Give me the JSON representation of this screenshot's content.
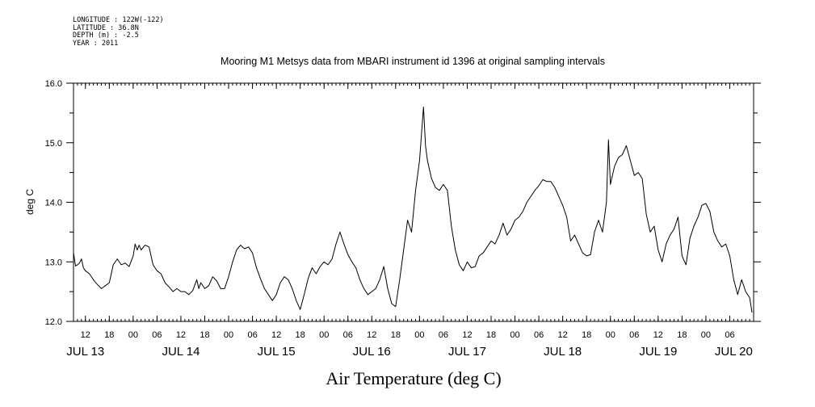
{
  "metadata": {
    "longitude": "LONGITUDE : 122W(-122)",
    "latitude": "LATITUDE : 36.8N",
    "depth": "DEPTH (m) : -2.5",
    "year": "YEAR : 2011"
  },
  "chart_data": {
    "type": "line",
    "title": "Mooring M1 Metsys data from MBARI instrument id 1396 at original sampling intervals",
    "xlabel": "Air Temperature (deg C)",
    "ylabel": "deg C",
    "ylim": [
      12.0,
      16.0
    ],
    "xlim_hours": [
      0,
      171
    ],
    "yticks": [
      "12.0",
      "13.0",
      "14.0",
      "15.0",
      "16.0"
    ],
    "hour_ticks": [
      {
        "h": 3,
        "label": "12"
      },
      {
        "h": 9,
        "label": "18"
      },
      {
        "h": 15,
        "label": "00"
      },
      {
        "h": 21,
        "label": "06"
      },
      {
        "h": 27,
        "label": "12"
      },
      {
        "h": 33,
        "label": "18"
      },
      {
        "h": 39,
        "label": "00"
      },
      {
        "h": 45,
        "label": "06"
      },
      {
        "h": 51,
        "label": "12"
      },
      {
        "h": 57,
        "label": "18"
      },
      {
        "h": 63,
        "label": "00"
      },
      {
        "h": 69,
        "label": "06"
      },
      {
        "h": 75,
        "label": "12"
      },
      {
        "h": 81,
        "label": "18"
      },
      {
        "h": 87,
        "label": "00"
      },
      {
        "h": 93,
        "label": "06"
      },
      {
        "h": 99,
        "label": "12"
      },
      {
        "h": 105,
        "label": "18"
      },
      {
        "h": 111,
        "label": "00"
      },
      {
        "h": 117,
        "label": "06"
      },
      {
        "h": 123,
        "label": "12"
      },
      {
        "h": 129,
        "label": "18"
      },
      {
        "h": 135,
        "label": "00"
      },
      {
        "h": 141,
        "label": "06"
      },
      {
        "h": 147,
        "label": "12"
      },
      {
        "h": 153,
        "label": "18"
      },
      {
        "h": 159,
        "label": "00"
      },
      {
        "h": 165,
        "label": "06"
      }
    ],
    "day_labels": [
      {
        "h": 3,
        "label": "JUL 13"
      },
      {
        "h": 27,
        "label": "JUL 14"
      },
      {
        "h": 51,
        "label": "JUL 15"
      },
      {
        "h": 75,
        "label": "JUL 16"
      },
      {
        "h": 99,
        "label": "JUL 17"
      },
      {
        "h": 123,
        "label": "JUL 18"
      },
      {
        "h": 147,
        "label": "JUL 19"
      },
      {
        "h": 166,
        "label": "JUL 20"
      }
    ],
    "series": [
      {
        "values": [
          [
            0.0,
            13.15
          ],
          [
            0.5,
            12.93
          ],
          [
            1.0,
            12.95
          ],
          [
            1.5,
            12.98
          ],
          [
            2.0,
            13.05
          ],
          [
            2.5,
            12.9
          ],
          [
            3.0,
            12.85
          ],
          [
            4.0,
            12.8
          ],
          [
            5.0,
            12.7
          ],
          [
            6.0,
            12.62
          ],
          [
            7.0,
            12.55
          ],
          [
            8.0,
            12.6
          ],
          [
            9.0,
            12.65
          ],
          [
            9.5,
            12.8
          ],
          [
            10.0,
            12.95
          ],
          [
            11.0,
            13.05
          ],
          [
            12.0,
            12.95
          ],
          [
            13.0,
            12.98
          ],
          [
            14.0,
            12.92
          ],
          [
            15.0,
            13.1
          ],
          [
            15.5,
            13.3
          ],
          [
            16.0,
            13.2
          ],
          [
            16.5,
            13.28
          ],
          [
            17.0,
            13.2
          ],
          [
            18.0,
            13.28
          ],
          [
            19.0,
            13.25
          ],
          [
            19.5,
            13.1
          ],
          [
            20.0,
            12.95
          ],
          [
            21.0,
            12.85
          ],
          [
            22.0,
            12.8
          ],
          [
            23.0,
            12.65
          ],
          [
            24.0,
            12.58
          ],
          [
            25.0,
            12.5
          ],
          [
            26.0,
            12.55
          ],
          [
            27.0,
            12.5
          ],
          [
            28.0,
            12.5
          ],
          [
            29.0,
            12.45
          ],
          [
            30.0,
            12.52
          ],
          [
            31.0,
            12.7
          ],
          [
            31.5,
            12.55
          ],
          [
            32.0,
            12.65
          ],
          [
            33.0,
            12.55
          ],
          [
            34.0,
            12.6
          ],
          [
            35.0,
            12.75
          ],
          [
            36.0,
            12.68
          ],
          [
            37.0,
            12.55
          ],
          [
            38.0,
            12.55
          ],
          [
            39.0,
            12.75
          ],
          [
            40.0,
            13.0
          ],
          [
            41.0,
            13.2
          ],
          [
            42.0,
            13.28
          ],
          [
            43.0,
            13.22
          ],
          [
            44.0,
            13.25
          ],
          [
            45.0,
            13.15
          ],
          [
            46.0,
            12.9
          ],
          [
            47.0,
            12.72
          ],
          [
            48.0,
            12.55
          ],
          [
            49.0,
            12.45
          ],
          [
            50.0,
            12.35
          ],
          [
            51.0,
            12.45
          ],
          [
            52.0,
            12.65
          ],
          [
            53.0,
            12.75
          ],
          [
            54.0,
            12.7
          ],
          [
            55.0,
            12.55
          ],
          [
            56.0,
            12.35
          ],
          [
            57.0,
            12.2
          ],
          [
            58.0,
            12.45
          ],
          [
            59.0,
            12.72
          ],
          [
            60.0,
            12.9
          ],
          [
            61.0,
            12.8
          ],
          [
            62.0,
            12.92
          ],
          [
            63.0,
            13.0
          ],
          [
            64.0,
            12.95
          ],
          [
            65.0,
            13.05
          ],
          [
            66.0,
            13.3
          ],
          [
            67.0,
            13.5
          ],
          [
            68.0,
            13.3
          ],
          [
            69.0,
            13.12
          ],
          [
            70.0,
            13.0
          ],
          [
            71.0,
            12.9
          ],
          [
            72.0,
            12.7
          ],
          [
            73.0,
            12.55
          ],
          [
            74.0,
            12.45
          ],
          [
            75.0,
            12.5
          ],
          [
            76.0,
            12.55
          ],
          [
            77.0,
            12.7
          ],
          [
            78.0,
            12.92
          ],
          [
            79.0,
            12.55
          ],
          [
            80.0,
            12.3
          ],
          [
            81.0,
            12.25
          ],
          [
            82.0,
            12.7
          ],
          [
            83.0,
            13.2
          ],
          [
            84.0,
            13.7
          ],
          [
            85.0,
            13.5
          ],
          [
            86.0,
            14.2
          ],
          [
            87.0,
            14.7
          ],
          [
            88.0,
            15.6
          ],
          [
            88.5,
            14.95
          ],
          [
            89.0,
            14.7
          ],
          [
            90.0,
            14.4
          ],
          [
            91.0,
            14.25
          ],
          [
            92.0,
            14.2
          ],
          [
            93.0,
            14.3
          ],
          [
            94.0,
            14.2
          ],
          [
            95.0,
            13.6
          ],
          [
            96.0,
            13.2
          ],
          [
            97.0,
            12.95
          ],
          [
            98.0,
            12.85
          ],
          [
            99.0,
            13.0
          ],
          [
            100.0,
            12.9
          ],
          [
            101.0,
            12.92
          ],
          [
            102.0,
            13.1
          ],
          [
            103.0,
            13.15
          ],
          [
            104.0,
            13.25
          ],
          [
            105.0,
            13.35
          ],
          [
            106.0,
            13.3
          ],
          [
            107.0,
            13.45
          ],
          [
            108.0,
            13.65
          ],
          [
            109.0,
            13.45
          ],
          [
            110.0,
            13.55
          ],
          [
            111.0,
            13.7
          ],
          [
            112.0,
            13.75
          ],
          [
            113.0,
            13.85
          ],
          [
            114.0,
            14.0
          ],
          [
            115.0,
            14.1
          ],
          [
            116.0,
            14.2
          ],
          [
            117.0,
            14.28
          ],
          [
            118.0,
            14.38
          ],
          [
            119.0,
            14.35
          ],
          [
            120.0,
            14.35
          ],
          [
            121.0,
            14.25
          ],
          [
            122.0,
            14.1
          ],
          [
            123.0,
            13.95
          ],
          [
            124.0,
            13.75
          ],
          [
            125.0,
            13.35
          ],
          [
            126.0,
            13.45
          ],
          [
            127.0,
            13.3
          ],
          [
            128.0,
            13.15
          ],
          [
            129.0,
            13.1
          ],
          [
            130.0,
            13.12
          ],
          [
            131.0,
            13.5
          ],
          [
            132.0,
            13.7
          ],
          [
            133.0,
            13.5
          ],
          [
            134.0,
            14.0
          ],
          [
            134.5,
            15.05
          ],
          [
            135.0,
            14.3
          ],
          [
            136.0,
            14.6
          ],
          [
            137.0,
            14.75
          ],
          [
            138.0,
            14.8
          ],
          [
            139.0,
            14.95
          ],
          [
            140.0,
            14.7
          ],
          [
            141.0,
            14.45
          ],
          [
            142.0,
            14.5
          ],
          [
            143.0,
            14.4
          ],
          [
            144.0,
            13.8
          ],
          [
            145.0,
            13.5
          ],
          [
            146.0,
            13.6
          ],
          [
            147.0,
            13.2
          ],
          [
            148.0,
            13.0
          ],
          [
            149.0,
            13.3
          ],
          [
            150.0,
            13.45
          ],
          [
            151.0,
            13.55
          ],
          [
            152.0,
            13.75
          ],
          [
            153.0,
            13.1
          ],
          [
            154.0,
            12.95
          ],
          [
            155.0,
            13.4
          ],
          [
            156.0,
            13.6
          ],
          [
            157.0,
            13.75
          ],
          [
            158.0,
            13.95
          ],
          [
            159.0,
            13.98
          ],
          [
            160.0,
            13.85
          ],
          [
            161.0,
            13.5
          ],
          [
            162.0,
            13.35
          ],
          [
            163.0,
            13.25
          ],
          [
            164.0,
            13.3
          ],
          [
            165.0,
            13.1
          ],
          [
            166.0,
            12.7
          ],
          [
            167.0,
            12.45
          ],
          [
            168.0,
            12.7
          ],
          [
            169.0,
            12.5
          ],
          [
            170.0,
            12.4
          ],
          [
            170.6,
            12.15
          ]
        ]
      }
    ]
  }
}
